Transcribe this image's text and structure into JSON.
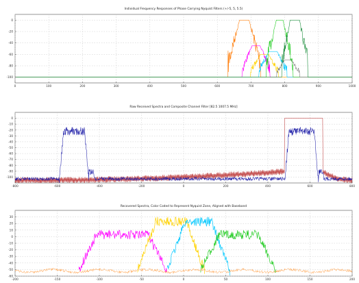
{
  "figure": {
    "background": "#ffffff",
    "axes_color": "#6a6a6a",
    "grid_color": "#c8c8c8"
  },
  "chart_data": [
    {
      "type": "line",
      "title": "Individual Frequency Responses of Phase Carrying Nyquist Filters (+/-5, 5, 5.5)",
      "xlim": [
        0,
        1000
      ],
      "ylim": [
        -110,
        10
      ],
      "xticks": [
        0,
        100,
        200,
        300,
        400,
        500,
        600,
        700,
        800,
        900,
        1000
      ],
      "yticks": [
        0,
        -20,
        -40,
        -60,
        -80,
        -100
      ],
      "grid": true,
      "series": [
        {
          "color": "#ff7f0e",
          "center": 680,
          "width": 28,
          "peak": 0,
          "floor": -100,
          "skirt": 35
        },
        {
          "color": "#ff00ff",
          "center": 715,
          "width": 24,
          "peak": -45,
          "floor": -100,
          "skirt": 30
        },
        {
          "color": "#ffd200",
          "center": 740,
          "width": 24,
          "peak": -60,
          "floor": -100,
          "skirt": 30
        },
        {
          "color": "#00c8ff",
          "center": 765,
          "width": 24,
          "peak": -55,
          "floor": -100,
          "skirt": 30
        },
        {
          "color": "#22cc22",
          "center": 785,
          "width": 20,
          "peak": 0,
          "floor": -100,
          "skirt": 30
        },
        {
          "color": "#7f7f7f",
          "center": 810,
          "width": 20,
          "peak": -70,
          "floor": -100,
          "skirt": 25
        },
        {
          "color": "#1f8f3f",
          "center": 830,
          "width": 28,
          "peak": 0,
          "floor": -100,
          "skirt": 25
        }
      ]
    },
    {
      "type": "line",
      "title": "Raw Received Spectra and Composite Channel Filter [82.5 1007.5 MHz]",
      "xlim": [
        -800,
        800
      ],
      "ylim": [
        -110,
        10
      ],
      "xticks": [
        -800,
        -600,
        -400,
        -200,
        0,
        200,
        400,
        600,
        800
      ],
      "yticks": [
        0,
        -10,
        -20,
        -30,
        -40,
        -50,
        -60,
        -70,
        -80,
        -90,
        -100
      ],
      "grid": true,
      "series": [
        {
          "color": "#1f1fa8",
          "signal_bands": [
            [
              -590,
              -450
            ],
            [
              480,
              640
            ]
          ],
          "in_band_level": -15,
          "noise_floor": -100
        },
        {
          "color": "#c24a4a",
          "passband": [
            480,
            660
          ],
          "passband_level": 0,
          "sidelobe_edge": -100,
          "sidelobe_near": -85
        }
      ]
    },
    {
      "type": "line",
      "title": "Recovered Spectra, Color Coded to Represent Nyquist Zone, Aligned with Baseband",
      "xlim": [
        -200,
        200
      ],
      "ylim": [
        -60,
        40
      ],
      "xticks": [
        -200,
        -150,
        -100,
        -50,
        0,
        50,
        100,
        150,
        200
      ],
      "yticks": [
        30,
        20,
        10,
        0,
        -10,
        -20,
        -30,
        -40,
        -50,
        -60
      ],
      "grid": true,
      "series": [
        {
          "color": "#ff00ff",
          "band": [
            -115,
            -30
          ],
          "level": 10
        },
        {
          "color": "#ffd200",
          "band": [
            -45,
            15
          ],
          "level": 30
        },
        {
          "color": "#00c8ff",
          "band": [
            -10,
            45
          ],
          "level": 30
        },
        {
          "color": "#22cc22",
          "band": [
            30,
            100
          ],
          "level": 10
        },
        {
          "color": "#ff9a3c",
          "band": [
            -190,
            190
          ],
          "level": -50
        }
      ]
    }
  ]
}
